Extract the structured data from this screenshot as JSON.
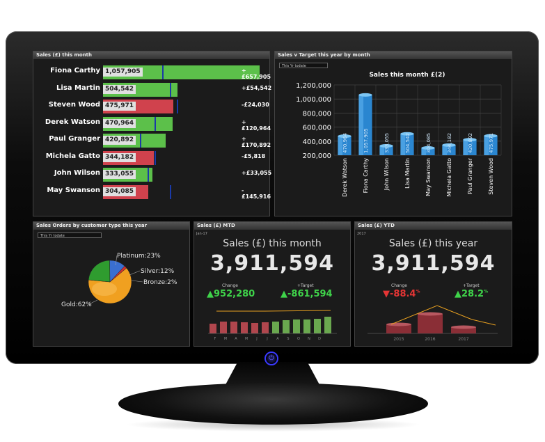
{
  "panels": {
    "sales_month": {
      "title": "Sales (£) this month",
      "rows": [
        {
          "name": "Fiona Carthy",
          "value": "1,057,905",
          "diff": "+£657,905",
          "color": "#5cc04a"
        },
        {
          "name": "Lisa Martin",
          "value": "504,542",
          "diff": "+£54,542",
          "color": "#5cc04a"
        },
        {
          "name": "Steven Wood",
          "value": "475,971",
          "diff": "-£24,030",
          "color": "#d0424d"
        },
        {
          "name": "Derek Watson",
          "value": "470,964",
          "diff": "+£120,964",
          "color": "#5cc04a"
        },
        {
          "name": "Paul Granger",
          "value": "420,892",
          "diff": "+£170,892",
          "color": "#5cc04a"
        },
        {
          "name": "Michela Gatto",
          "value": "344,182",
          "diff": "-£5,818",
          "color": "#d0424d"
        },
        {
          "name": "John Wilson",
          "value": "333,055",
          "diff": "+£33,055",
          "color": "#5cc04a"
        },
        {
          "name": "May Swanson",
          "value": "304,085",
          "diff": "-£145,916",
          "color": "#d0424d"
        }
      ]
    },
    "sales_target": {
      "title": "Sales v Target this year by month",
      "select": "This Yr todate",
      "chart_title": "Sales this month £(2)"
    },
    "orders": {
      "title": "Sales Orders by customer type this year",
      "select": "This Yr todate"
    },
    "mtd": {
      "title": "Sales (£) MTD",
      "period": "Jan-17",
      "heading": "Sales (£) this month",
      "value": "3,911,594",
      "change_label": "Change",
      "change": "952,280",
      "target_label": "+Target",
      "target": "-861,594",
      "months": [
        "F",
        "M",
        "A",
        "M",
        "J",
        "J",
        "A",
        "S",
        "O",
        "N",
        "D"
      ]
    },
    "ytd": {
      "title": "Sales (£) YTD",
      "period": "2017",
      "heading": "Sales (£) this year",
      "value": "3,911,594",
      "change_label": "Change",
      "change": "-88.4",
      "target_label": "+Target",
      "target": "28.2",
      "pct": "%",
      "years": [
        "2015",
        "2016",
        "2017"
      ]
    }
  },
  "colors": {
    "green": "#5cc04a",
    "red": "#d0424d",
    "kpi_green": "#3fd34a",
    "kpi_red": "#e53535"
  },
  "chart_data": [
    {
      "type": "bar",
      "title": "Sales this month £(2)",
      "categories": [
        "Derek Watson",
        "Fiona Carthy",
        "John Wilson",
        "Lisa Martin",
        "May Swanson",
        "Michela Gatto",
        "Paul Granger",
        "Steven Wood"
      ],
      "values": [
        470964,
        1057905,
        333055,
        504542,
        304085,
        344182,
        420892,
        475971
      ],
      "ylim": [
        200000,
        1200000
      ],
      "yticks": [
        "1,200,000",
        "1,000,000",
        "800,000",
        "600,000",
        "400,000",
        "200,000"
      ],
      "labels": [
        "470,964",
        "1,057,905",
        "333,055",
        "504,542",
        "304,085",
        "344,182",
        "420,892",
        "475,971"
      ]
    },
    {
      "type": "pie",
      "slices": [
        {
          "label": "Platinum:23%",
          "value": 23,
          "color": "#2f9c2f"
        },
        {
          "label": "Silver:12%",
          "value": 12,
          "color": "#3a6fd0"
        },
        {
          "label": "Bronze:2%",
          "value": 2,
          "color": "#d03030"
        },
        {
          "label": "Gold:62%",
          "value": 62,
          "color": "#f0a020"
        }
      ]
    }
  ]
}
